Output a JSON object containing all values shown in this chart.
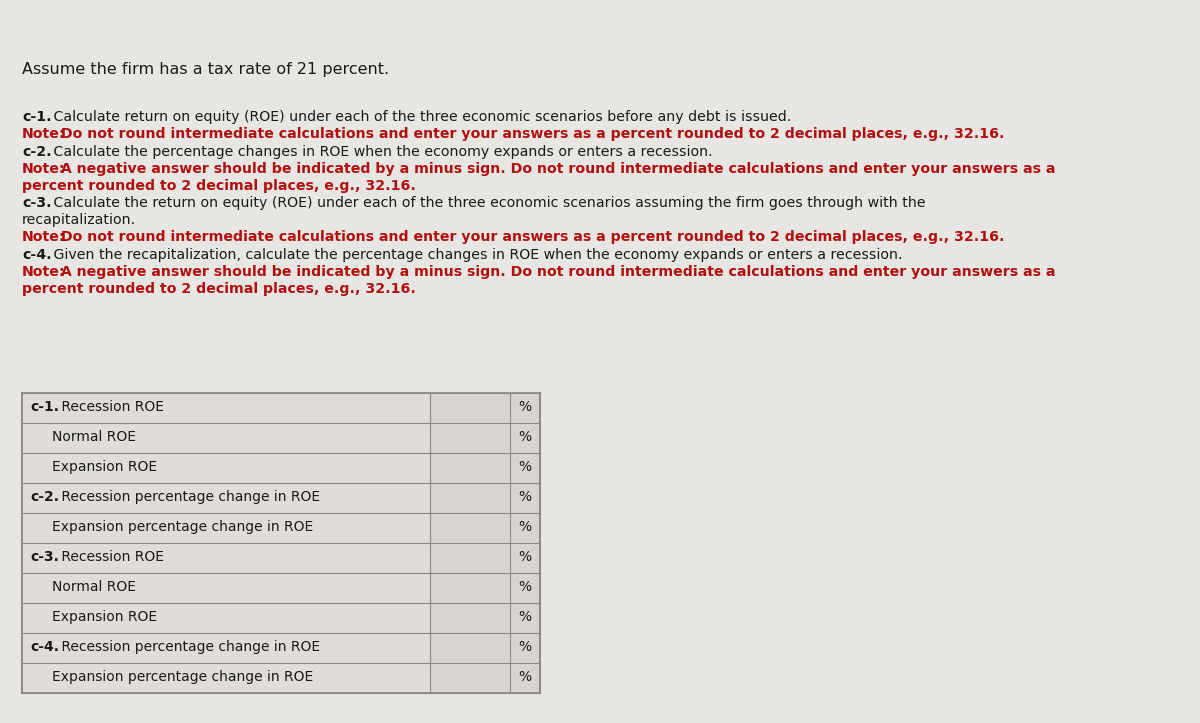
{
  "page_bg": "#e8e6e2",
  "title_line": "Assume the firm has a tax rate of 21 percent.",
  "text_color": "#1a1a1a",
  "red_color": "#b01010",
  "table_bg_light": "#e0ddd8",
  "table_bg_input": "#d8d5d0",
  "table_border": "#888888",
  "font_size_title": 11.5,
  "font_size_body": 10.2,
  "font_size_table": 10.0,
  "lines": [
    {
      "segs": [
        [
          "c-1.",
          true,
          false
        ],
        [
          " Calculate return on equity (ROE) under each of the three economic scenarios before any debt is issued.",
          false,
          false
        ]
      ]
    },
    {
      "segs": [
        [
          "Note:",
          true,
          true
        ],
        [
          " Do not round intermediate calculations and enter your answers as a percent rounded to 2 decimal places, e.g., 32.16.",
          true,
          true
        ]
      ]
    },
    {
      "segs": [
        [
          "c-2.",
          true,
          false
        ],
        [
          " Calculate the percentage changes in ROE when the economy expands or enters a recession.",
          false,
          false
        ]
      ]
    },
    {
      "segs": [
        [
          "Note:",
          true,
          true
        ],
        [
          " A negative answer should be indicated by a minus sign. Do not round intermediate calculations and enter your answers as a",
          true,
          true
        ]
      ]
    },
    {
      "segs": [
        [
          "percent rounded to 2 decimal places, e.g., 32.16.",
          true,
          true
        ]
      ]
    },
    {
      "segs": [
        [
          "c-3.",
          true,
          false
        ],
        [
          " Calculate the return on equity (ROE) under each of the three economic scenarios assuming the firm goes through with the",
          false,
          false
        ]
      ]
    },
    {
      "segs": [
        [
          "recapitalization.",
          false,
          false
        ]
      ]
    },
    {
      "segs": [
        [
          "Note:",
          true,
          true
        ],
        [
          " Do not round intermediate calculations and enter your answers as a percent rounded to 2 decimal places, e.g., 32.16.",
          true,
          true
        ]
      ]
    },
    {
      "segs": [
        [
          "c-4.",
          true,
          false
        ],
        [
          " Given the recapitalization, calculate the percentage changes in ROE when the economy expands or enters a recession.",
          false,
          false
        ]
      ]
    },
    {
      "segs": [
        [
          "Note:",
          true,
          true
        ],
        [
          " A negative answer should be indicated by a minus sign. Do not round intermediate calculations and enter your answers as a",
          true,
          true
        ]
      ]
    },
    {
      "segs": [
        [
          "percent rounded to 2 decimal places, e.g., 32.16.",
          true,
          true
        ]
      ]
    }
  ],
  "table_rows": [
    {
      "label": "c-1. Recession ROE",
      "prefix": "c-1.",
      "indent": false
    },
    {
      "label": "Normal ROE",
      "prefix": "",
      "indent": true
    },
    {
      "label": "Expansion ROE",
      "prefix": "",
      "indent": true
    },
    {
      "label": "c-2. Recession percentage change in ROE",
      "prefix": "c-2.",
      "indent": false
    },
    {
      "label": "Expansion percentage change in ROE",
      "prefix": "",
      "indent": true
    },
    {
      "label": "c-3. Recession ROE",
      "prefix": "c-3.",
      "indent": false
    },
    {
      "label": "Normal ROE",
      "prefix": "",
      "indent": true
    },
    {
      "label": "Expansion ROE",
      "prefix": "",
      "indent": true
    },
    {
      "label": "c-4. Recession percentage change in ROE",
      "prefix": "c-4.",
      "indent": false
    },
    {
      "label": "Expansion percentage change in ROE",
      "prefix": "",
      "indent": true
    }
  ]
}
